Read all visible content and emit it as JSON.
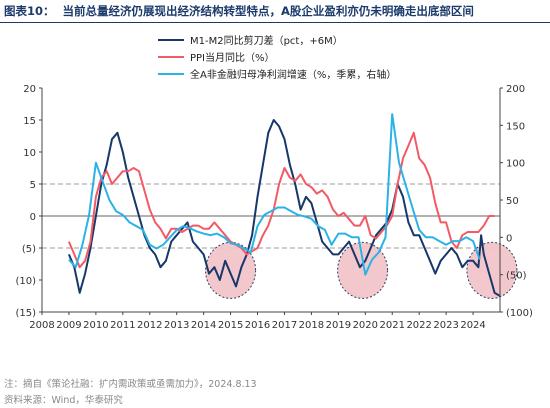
{
  "header": {
    "figure_no": "图表10：",
    "title": "当前总量经济仍展现出经济结构转型特点，A股企业盈利亦仍未明确走出底部区间"
  },
  "footer": {
    "note": "注：摘自《策论社融：扩内需政策或亟需加力》，2024.8.13",
    "source": "资料来源：Wind，华泰研究"
  },
  "colors": {
    "m1m2": "#17376b",
    "ppi": "#f25b66",
    "profit": "#2bb3e8",
    "circle_fill": "#f2c3c8",
    "ref_line": "#bdbdbd"
  },
  "chart_data": {
    "type": "line",
    "x_ticks": [
      "2008",
      "2009",
      "2010",
      "2011",
      "2012",
      "2013",
      "2014",
      "2015",
      "2016",
      "2017",
      "2018",
      "2019",
      "2020",
      "2021",
      "2022",
      "2023",
      "2024"
    ],
    "left_axis": {
      "ticks": [
        "20",
        "15",
        "10",
        "5",
        "0",
        "(5)",
        "(10)",
        "(15)"
      ],
      "ylim": [
        -15,
        20
      ]
    },
    "right_axis": {
      "ticks": [
        "200",
        "150",
        "100",
        "50",
        "0",
        "(50)",
        "(100)"
      ],
      "ylim": [
        -100,
        200
      ]
    },
    "reference_lines_left": [
      5,
      -5
    ],
    "highlight_years": [
      2015,
      2019.9,
      2024.7
    ],
    "series": [
      {
        "name": "M1-M2同比剪刀差（pct，+6M）",
        "axis": "left",
        "color": "#17376b",
        "points": [
          [
            2009.0,
            -6
          ],
          [
            2009.2,
            -8
          ],
          [
            2009.4,
            -12
          ],
          [
            2009.6,
            -9
          ],
          [
            2009.8,
            -5
          ],
          [
            2010.0,
            0
          ],
          [
            2010.2,
            5
          ],
          [
            2010.4,
            8
          ],
          [
            2010.6,
            12
          ],
          [
            2010.8,
            13
          ],
          [
            2011.0,
            10
          ],
          [
            2011.2,
            6
          ],
          [
            2011.4,
            3
          ],
          [
            2011.6,
            0
          ],
          [
            2011.8,
            -3
          ],
          [
            2012.0,
            -5
          ],
          [
            2012.2,
            -6
          ],
          [
            2012.4,
            -8
          ],
          [
            2012.6,
            -7
          ],
          [
            2012.8,
            -4
          ],
          [
            2013.0,
            -3
          ],
          [
            2013.2,
            -2
          ],
          [
            2013.4,
            -1
          ],
          [
            2013.6,
            -4
          ],
          [
            2013.8,
            -5
          ],
          [
            2014.0,
            -6
          ],
          [
            2014.2,
            -9
          ],
          [
            2014.4,
            -8
          ],
          [
            2014.6,
            -10
          ],
          [
            2014.8,
            -7
          ],
          [
            2015.0,
            -9
          ],
          [
            2015.2,
            -11
          ],
          [
            2015.4,
            -8
          ],
          [
            2015.6,
            -6
          ],
          [
            2015.8,
            -3
          ],
          [
            2016.0,
            3
          ],
          [
            2016.2,
            8
          ],
          [
            2016.4,
            13
          ],
          [
            2016.6,
            15
          ],
          [
            2016.8,
            14
          ],
          [
            2017.0,
            12
          ],
          [
            2017.2,
            8
          ],
          [
            2017.4,
            5
          ],
          [
            2017.6,
            1
          ],
          [
            2017.8,
            3
          ],
          [
            2018.0,
            2
          ],
          [
            2018.2,
            -1
          ],
          [
            2018.4,
            -4
          ],
          [
            2018.6,
            -5
          ],
          [
            2018.8,
            -6
          ],
          [
            2019.0,
            -6
          ],
          [
            2019.2,
            -5
          ],
          [
            2019.4,
            -4
          ],
          [
            2019.6,
            -6
          ],
          [
            2019.8,
            -8
          ],
          [
            2020.0,
            -7
          ],
          [
            2020.2,
            -5
          ],
          [
            2020.4,
            -3
          ],
          [
            2020.6,
            -2
          ],
          [
            2020.8,
            -1
          ],
          [
            2021.0,
            1
          ],
          [
            2021.2,
            5
          ],
          [
            2021.4,
            3
          ],
          [
            2021.6,
            -1
          ],
          [
            2021.8,
            -3
          ],
          [
            2022.0,
            -3
          ],
          [
            2022.2,
            -5
          ],
          [
            2022.4,
            -7
          ],
          [
            2022.6,
            -9
          ],
          [
            2022.8,
            -7
          ],
          [
            2023.0,
            -6
          ],
          [
            2023.2,
            -5
          ],
          [
            2023.4,
            -6
          ],
          [
            2023.6,
            -8
          ],
          [
            2023.8,
            -7
          ],
          [
            2024.0,
            -7
          ],
          [
            2024.2,
            -8
          ],
          [
            2024.3,
            -3
          ],
          [
            2024.4,
            -6
          ],
          [
            2024.6,
            -9
          ],
          [
            2024.8,
            -12
          ],
          [
            2025.0,
            -12.5
          ]
        ]
      },
      {
        "name": "PPI当月同比（%）",
        "axis": "left",
        "color": "#f25b66",
        "points": [
          [
            2009.0,
            -4
          ],
          [
            2009.2,
            -6
          ],
          [
            2009.4,
            -8
          ],
          [
            2009.6,
            -7
          ],
          [
            2009.8,
            -4
          ],
          [
            2010.0,
            3
          ],
          [
            2010.2,
            6
          ],
          [
            2010.4,
            7
          ],
          [
            2010.6,
            5
          ],
          [
            2010.8,
            6
          ],
          [
            2011.0,
            7
          ],
          [
            2011.2,
            7
          ],
          [
            2011.4,
            7.5
          ],
          [
            2011.6,
            7
          ],
          [
            2011.8,
            4
          ],
          [
            2012.0,
            1
          ],
          [
            2012.2,
            -1
          ],
          [
            2012.4,
            -2
          ],
          [
            2012.6,
            -3.5
          ],
          [
            2012.8,
            -2
          ],
          [
            2013.0,
            -2
          ],
          [
            2013.2,
            -2.5
          ],
          [
            2013.4,
            -2
          ],
          [
            2013.6,
            -1.5
          ],
          [
            2013.8,
            -1.5
          ],
          [
            2014.0,
            -2
          ],
          [
            2014.2,
            -2
          ],
          [
            2014.4,
            -1
          ],
          [
            2014.6,
            -2
          ],
          [
            2014.8,
            -3
          ],
          [
            2015.0,
            -4
          ],
          [
            2015.2,
            -4.5
          ],
          [
            2015.4,
            -5
          ],
          [
            2015.6,
            -6
          ],
          [
            2015.8,
            -5.5
          ],
          [
            2016.0,
            -5
          ],
          [
            2016.2,
            -3
          ],
          [
            2016.4,
            -1.5
          ],
          [
            2016.6,
            1
          ],
          [
            2016.8,
            5
          ],
          [
            2017.0,
            7.5
          ],
          [
            2017.2,
            6
          ],
          [
            2017.4,
            5.5
          ],
          [
            2017.6,
            6.5
          ],
          [
            2017.8,
            5
          ],
          [
            2018.0,
            4.5
          ],
          [
            2018.2,
            3.5
          ],
          [
            2018.4,
            4
          ],
          [
            2018.6,
            3
          ],
          [
            2018.8,
            1
          ],
          [
            2019.0,
            0
          ],
          [
            2019.2,
            0.5
          ],
          [
            2019.4,
            -0.5
          ],
          [
            2019.6,
            -1.5
          ],
          [
            2019.8,
            -1.5
          ],
          [
            2020.0,
            0
          ],
          [
            2020.2,
            -3
          ],
          [
            2020.4,
            -3.5
          ],
          [
            2020.6,
            -2.5
          ],
          [
            2020.8,
            -1.5
          ],
          [
            2021.0,
            0
          ],
          [
            2021.2,
            5
          ],
          [
            2021.4,
            9
          ],
          [
            2021.6,
            11
          ],
          [
            2021.8,
            13
          ],
          [
            2022.0,
            9
          ],
          [
            2022.2,
            8
          ],
          [
            2022.4,
            6
          ],
          [
            2022.6,
            2
          ],
          [
            2022.8,
            -1
          ],
          [
            2023.0,
            -1
          ],
          [
            2023.2,
            -4
          ],
          [
            2023.4,
            -5
          ],
          [
            2023.6,
            -3
          ],
          [
            2023.8,
            -2.5
          ],
          [
            2024.0,
            -2.5
          ],
          [
            2024.2,
            -2.5
          ],
          [
            2024.4,
            -1.5
          ],
          [
            2024.6,
            0
          ],
          [
            2024.8,
            0
          ]
        ]
      },
      {
        "name": "全A非金融归母净利润增速（%，季累，右轴）",
        "axis": "right",
        "color": "#2bb3e8",
        "points": [
          [
            2009.0,
            -30
          ],
          [
            2009.25,
            -40
          ],
          [
            2009.5,
            -10
          ],
          [
            2009.75,
            30
          ],
          [
            2010.0,
            100
          ],
          [
            2010.25,
            75
          ],
          [
            2010.5,
            50
          ],
          [
            2010.75,
            35
          ],
          [
            2011.0,
            30
          ],
          [
            2011.25,
            20
          ],
          [
            2011.5,
            15
          ],
          [
            2011.75,
            10
          ],
          [
            2012.0,
            -10
          ],
          [
            2012.25,
            -15
          ],
          [
            2012.5,
            -10
          ],
          [
            2012.75,
            0
          ],
          [
            2013.0,
            10
          ],
          [
            2013.25,
            15
          ],
          [
            2013.5,
            12
          ],
          [
            2013.75,
            8
          ],
          [
            2014.0,
            5
          ],
          [
            2014.25,
            3
          ],
          [
            2014.5,
            5
          ],
          [
            2014.75,
            0
          ],
          [
            2015.0,
            -8
          ],
          [
            2015.25,
            -10
          ],
          [
            2015.5,
            -15
          ],
          [
            2015.75,
            -20
          ],
          [
            2016.0,
            15
          ],
          [
            2016.25,
            30
          ],
          [
            2016.5,
            35
          ],
          [
            2016.75,
            40
          ],
          [
            2017.0,
            40
          ],
          [
            2017.25,
            35
          ],
          [
            2017.5,
            30
          ],
          [
            2017.75,
            28
          ],
          [
            2018.0,
            25
          ],
          [
            2018.25,
            15
          ],
          [
            2018.5,
            10
          ],
          [
            2018.75,
            -10
          ],
          [
            2019.0,
            5
          ],
          [
            2019.25,
            5
          ],
          [
            2019.5,
            0
          ],
          [
            2019.75,
            0
          ],
          [
            2020.0,
            -50
          ],
          [
            2020.25,
            -30
          ],
          [
            2020.5,
            -20
          ],
          [
            2020.75,
            0
          ],
          [
            2021.0,
            165
          ],
          [
            2021.25,
            100
          ],
          [
            2021.5,
            70
          ],
          [
            2021.75,
            40
          ],
          [
            2022.0,
            10
          ],
          [
            2022.25,
            0
          ],
          [
            2022.5,
            0
          ],
          [
            2022.75,
            -5
          ],
          [
            2023.0,
            -10
          ],
          [
            2023.25,
            -5
          ],
          [
            2023.5,
            -5
          ],
          [
            2023.75,
            0
          ],
          [
            2024.0,
            -5
          ],
          [
            2024.25,
            -30
          ]
        ]
      }
    ]
  }
}
